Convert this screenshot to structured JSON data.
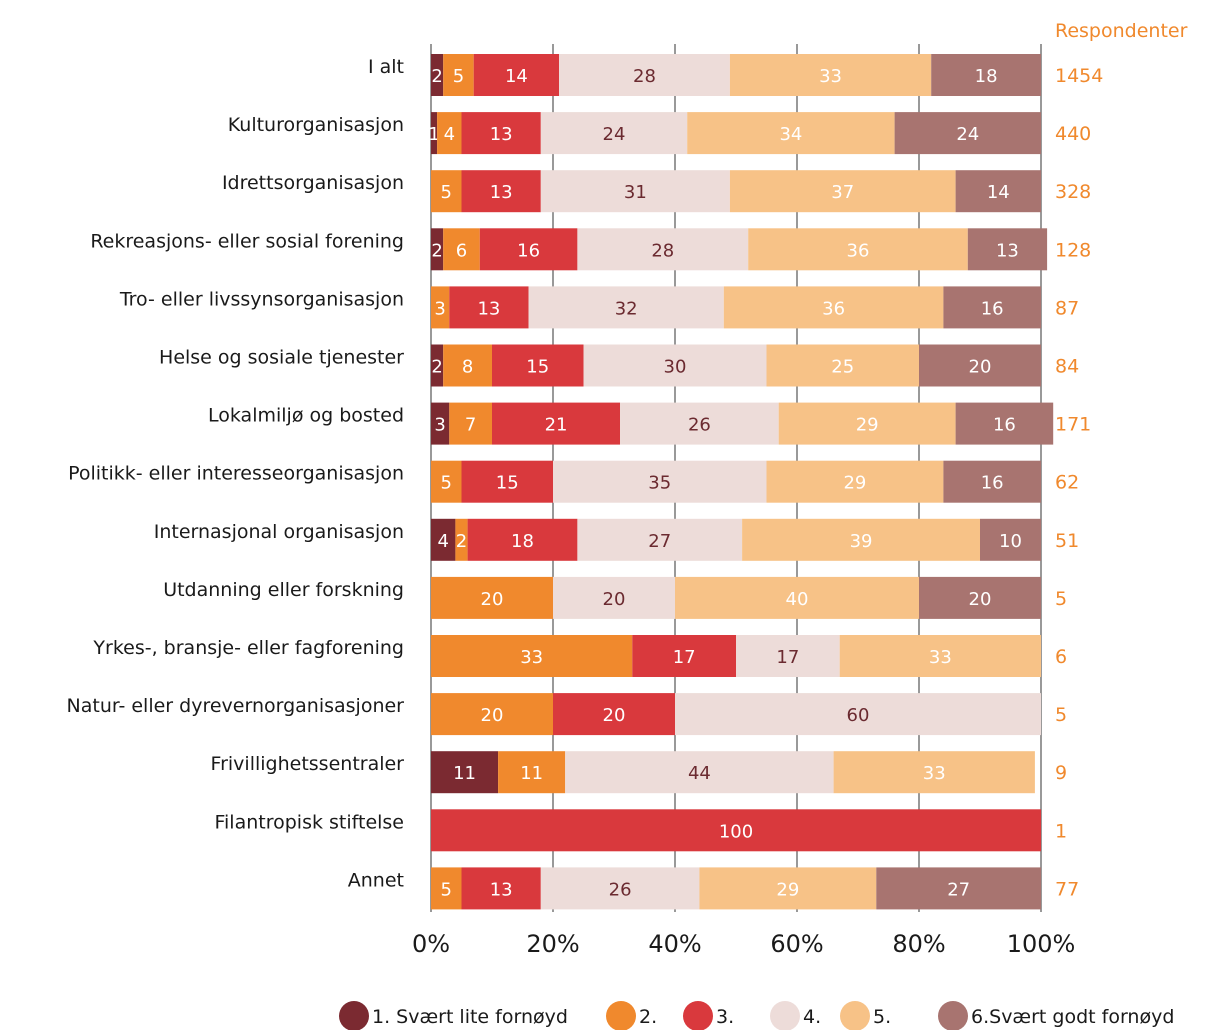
{
  "chart_data": {
    "type": "bar",
    "orientation": "horizontal",
    "stacked": true,
    "xlim": [
      0,
      100
    ],
    "x_ticks": [
      "0%",
      "20%",
      "40%",
      "60%",
      "80%",
      "100%"
    ],
    "grid": true,
    "legend_placement": "bottom",
    "respondents_title": "Respondenter",
    "categories": [
      "I alt",
      "Kulturorganisasjon",
      "Idrettsorganisasjon",
      "Rekreasjons- eller sosial forening",
      "Tro- eller livssynsorganisasjon",
      "Helse og sosiale tjenester",
      "Lokalmiljø og bosted",
      "Politikk- eller interesseorganisasjon",
      "Internasjonal organisasjon",
      "Utdanning eller forskning",
      "Yrkes-, bransje- eller fagforening",
      "Natur- eller dyrevernorganisasjoner",
      "Frivillighetssentraler",
      "Filantropisk stiftelse",
      "Annet"
    ],
    "respondents": [
      "1454",
      "440",
      "328",
      "128",
      "87",
      "84",
      "171",
      "62",
      "51",
      "5",
      "6",
      "5",
      "9",
      "1",
      "77"
    ],
    "series": [
      {
        "name": "1. Svært lite fornøyd",
        "color": "#7b2a31",
        "label_color": "#ffffff",
        "values": [
          2,
          1,
          0,
          2,
          0,
          2,
          3,
          0,
          4,
          0,
          0,
          0,
          11,
          0,
          0
        ]
      },
      {
        "name": "2.",
        "color": "#f0892d",
        "label_color": "#ffffff",
        "values": [
          5,
          4,
          5,
          6,
          3,
          8,
          7,
          5,
          2,
          20,
          33,
          20,
          11,
          0,
          5
        ]
      },
      {
        "name": "3.",
        "color": "#d9393d",
        "label_color": "#ffffff",
        "values": [
          14,
          13,
          13,
          16,
          13,
          15,
          21,
          15,
          18,
          0,
          17,
          20,
          0,
          100,
          13
        ]
      },
      {
        "name": "4.",
        "color": "#eddcd9",
        "label_color": "#6b2a30",
        "values": [
          28,
          24,
          31,
          28,
          32,
          30,
          26,
          35,
          27,
          20,
          17,
          60,
          44,
          0,
          26
        ]
      },
      {
        "name": "5.",
        "color": "#f7c287",
        "label_color": "#ffffff",
        "values": [
          33,
          34,
          37,
          36,
          36,
          25,
          29,
          29,
          39,
          40,
          33,
          0,
          33,
          0,
          29
        ]
      },
      {
        "name": "6.Svært godt fornøyd",
        "color": "#a87470",
        "label_color": "#ffffff",
        "values": [
          18,
          24,
          14,
          13,
          16,
          20,
          16,
          16,
          10,
          20,
          0,
          0,
          0,
          0,
          27
        ]
      }
    ]
  }
}
